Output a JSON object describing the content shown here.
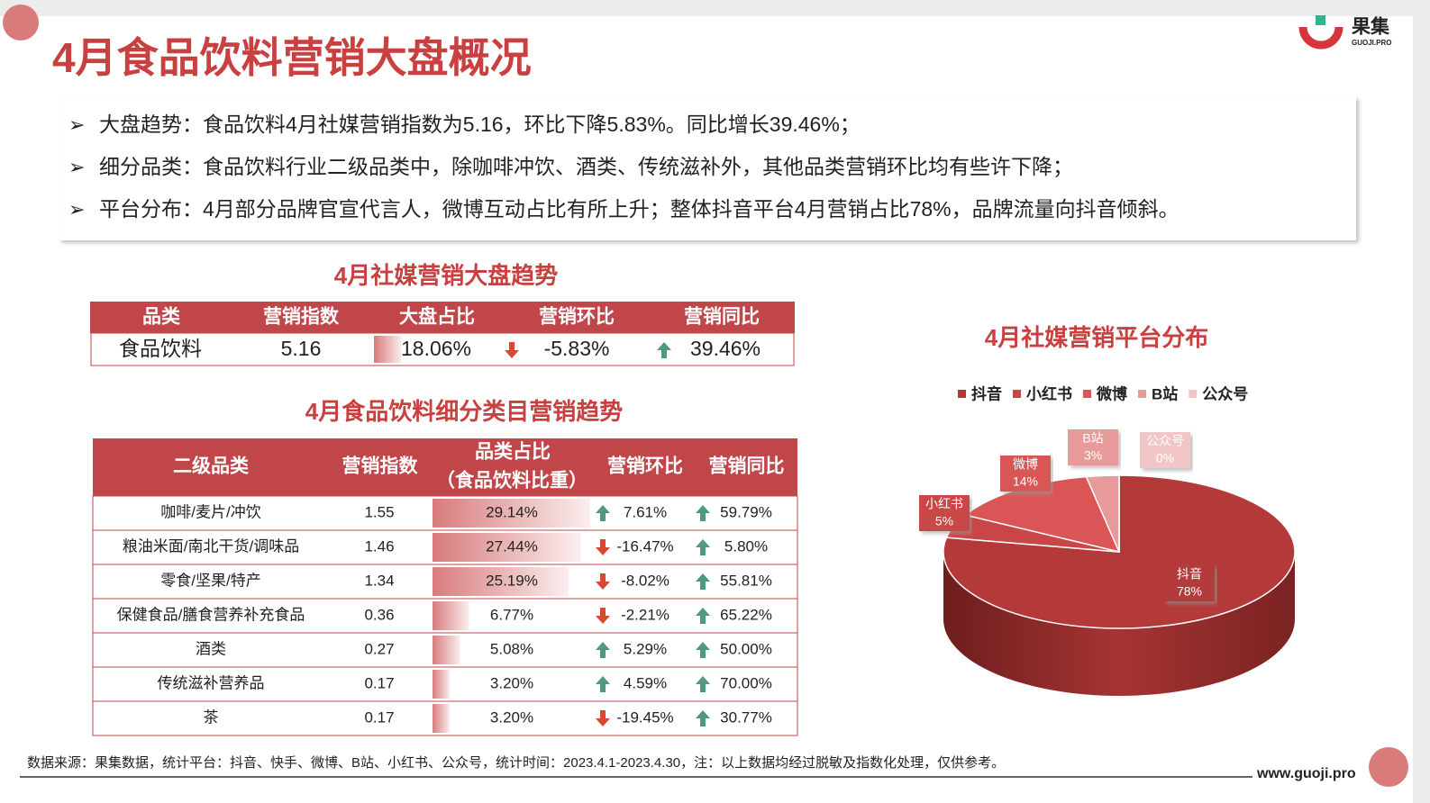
{
  "header": {
    "title": "4月食品饮料营销大盘概况",
    "logo": "果集",
    "logo_sub": "GUOJI.PRO"
  },
  "bullets": [
    "大盘趋势：食品饮料4月社媒营销指数为5.16，环比下降5.83%。同比增长39.46%；",
    "细分品类：食品饮料行业二级品类中，除咖啡冲饮、酒类、传统滋补外，其他品类营销环比均有些许下降；",
    "平台分布：4月部分品牌官宣代言人，微博互动占比有所上升；整体抖音平台4月营销占比78%，品牌流量向抖音倾斜。"
  ],
  "table1": {
    "title": "4月社媒营销大盘趋势",
    "headers": [
      "品类",
      "营销指数",
      "大盘占比",
      "营销环比",
      "营销同比"
    ],
    "rows": [
      [
        "食品饮料",
        5.16,
        {
          "value": 18.06,
          "label": "18.06%"
        },
        {
          "value": -5.83,
          "label": "-5.83%"
        },
        {
          "value": 39.46,
          "label": "39.46%"
        }
      ]
    ]
  },
  "table2": {
    "title": "4月食品饮料细分类目营销趋势",
    "headers": [
      "二级品类",
      "营销指数",
      "品类占比",
      "营销环比",
      "营销同比"
    ],
    "header_note": "（食品饮料比重）",
    "rows": [
      [
        "咖啡/麦片/冲饮",
        1.55,
        {
          "value": 29.14,
          "label": "29.14%"
        },
        {
          "value": 7.61,
          "label": "7.61%"
        },
        {
          "value": 59.79,
          "label": "59.79%"
        }
      ],
      [
        "粮油米面/南北干货/调味品",
        1.46,
        {
          "value": 27.44,
          "label": "27.44%"
        },
        {
          "value": -16.47,
          "label": "-16.47%"
        },
        {
          "value": 5.8,
          "label": "5.80%"
        }
      ],
      [
        "零食/坚果/特产",
        1.34,
        {
          "value": 25.19,
          "label": "25.19%"
        },
        {
          "value": -8.02,
          "label": "-8.02%"
        },
        {
          "value": 55.81,
          "label": "55.81%"
        }
      ],
      [
        "保健食品/膳食营养补充食品",
        0.36,
        {
          "value": 6.77,
          "label": "6.77%"
        },
        {
          "value": -2.21,
          "label": "-2.21%"
        },
        {
          "value": 65.22,
          "label": "65.22%"
        }
      ],
      [
        "酒类",
        0.27,
        {
          "value": 5.08,
          "label": "5.08%"
        },
        {
          "value": 5.29,
          "label": "5.29%"
        },
        {
          "value": 50.0,
          "label": "50.00%"
        }
      ],
      [
        "传统滋补营养品",
        0.17,
        {
          "value": 3.2,
          "label": "3.20%"
        },
        {
          "value": 4.59,
          "label": "4.59%"
        },
        {
          "value": 70.0,
          "label": "70.00%"
        }
      ],
      [
        "茶",
        0.17,
        {
          "value": 3.2,
          "label": "3.20%"
        },
        {
          "value": -19.45,
          "label": "-19.45%"
        },
        {
          "value": 30.77,
          "label": "30.77%"
        }
      ]
    ]
  },
  "chart_data": {
    "type": "pie",
    "title": "4月社媒营销平台分布",
    "categories": [
      "抖音",
      "小红书",
      "微博",
      "B站",
      "公众号"
    ],
    "values": [
      78,
      5,
      14,
      3,
      0
    ],
    "value_labels": [
      "78%",
      "5%",
      "14%",
      "3%",
      "0%"
    ],
    "colors": [
      "#b43a3a",
      "#c94646",
      "#da5555",
      "#e79a9a",
      "#f2c6c6"
    ],
    "legend": "top"
  },
  "footer": {
    "source": "数据来源：果集数据，统计平台：抖音、快手、微博、B站、小红书、公众号，统计时间：2023.4.1-2023.4.30，注：以上数据均经过脱敏及指数化处理，仅供参考。",
    "url": "www.guoji.pro"
  }
}
